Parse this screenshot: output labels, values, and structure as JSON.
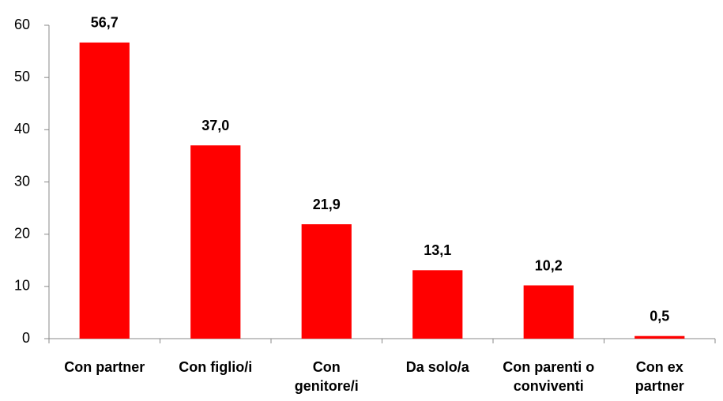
{
  "chart_data": {
    "type": "bar",
    "categories": [
      "Con partner",
      "Con figlio/i",
      "Con genitore/i",
      "Da solo/a",
      "Con parenti o conviventi",
      "Con ex partner"
    ],
    "values": [
      56.7,
      37.0,
      21.9,
      13.1,
      10.2,
      0.5
    ],
    "value_labels": [
      "56,7",
      "37,0",
      "21,9",
      "13,1",
      "10,2",
      "0,5"
    ],
    "color": "#ff0000",
    "ylim": [
      0,
      60
    ],
    "yticks": [
      0,
      10,
      20,
      30,
      40,
      50,
      60
    ]
  }
}
